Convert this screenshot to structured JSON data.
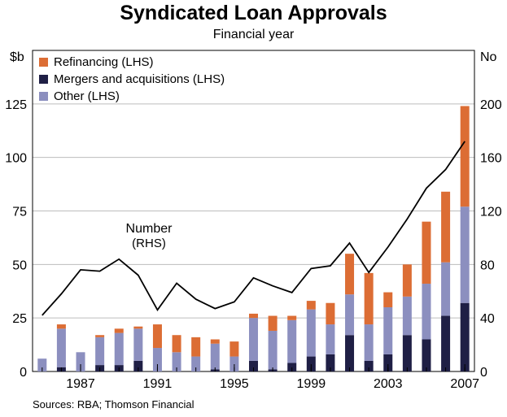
{
  "chart_data": {
    "type": "bar",
    "title": "Syndicated Loan Approvals",
    "subtitle": "Financial year",
    "ylabel_left": "$b",
    "ylabel_right": "No",
    "ylim_left": [
      0,
      150
    ],
    "ylim_right": [
      0,
      240
    ],
    "yticks_left": [
      "0",
      "25",
      "50",
      "75",
      "100",
      "125"
    ],
    "yticks_right": [
      "0",
      "40",
      "80",
      "120",
      "160",
      "200"
    ],
    "xtick_labels": [
      "1987",
      "1991",
      "1995",
      "1999",
      "2003",
      "2007"
    ],
    "categories": [
      "1985",
      "1986",
      "1987",
      "1988",
      "1989",
      "1990",
      "1991",
      "1992",
      "1993",
      "1994",
      "1995",
      "1996",
      "1997",
      "1998",
      "1999",
      "2000",
      "2001",
      "2002",
      "2003",
      "2004",
      "2005",
      "2006",
      "2007"
    ],
    "series": [
      {
        "name": "Mergers and acquisitions (LHS)",
        "color": "#1f1f45",
        "type": "bar",
        "values": [
          0,
          2,
          0,
          3,
          3,
          5,
          0,
          0,
          0,
          1,
          0,
          5,
          1,
          4,
          7,
          8,
          17,
          5,
          8,
          17,
          15,
          26,
          32
        ]
      },
      {
        "name": "Other (LHS)",
        "color": "#8c8fbf",
        "type": "bar",
        "values": [
          6,
          18,
          9,
          13,
          15,
          15,
          11,
          9,
          7,
          12,
          7,
          20,
          18,
          20,
          22,
          14,
          19,
          17,
          22,
          18,
          26,
          25,
          45
        ]
      },
      {
        "name": "Refinancing (LHS)",
        "color": "#dc6d34",
        "type": "bar",
        "values": [
          0,
          2,
          0,
          1,
          2,
          1,
          11,
          8,
          9,
          2,
          7,
          2,
          7,
          2,
          4,
          10,
          19,
          24,
          7,
          15,
          29,
          33,
          47
        ]
      },
      {
        "name": "Number (RHS)",
        "color": "#000000",
        "type": "line",
        "values": [
          42,
          58,
          76,
          75,
          84,
          72,
          46,
          66,
          54,
          47,
          52,
          70,
          64,
          59,
          77,
          79,
          96,
          74,
          93,
          114,
          137,
          151,
          172
        ]
      }
    ],
    "legend": [
      "Refinancing (LHS)",
      "Mergers and acquisitions (LHS)",
      "Other (LHS)"
    ],
    "annotation": {
      "line1": "Number",
      "line2": "(RHS)"
    },
    "source": "Sources: RBA; Thomson Financial",
    "grid": true,
    "legend_position": "top-left"
  }
}
